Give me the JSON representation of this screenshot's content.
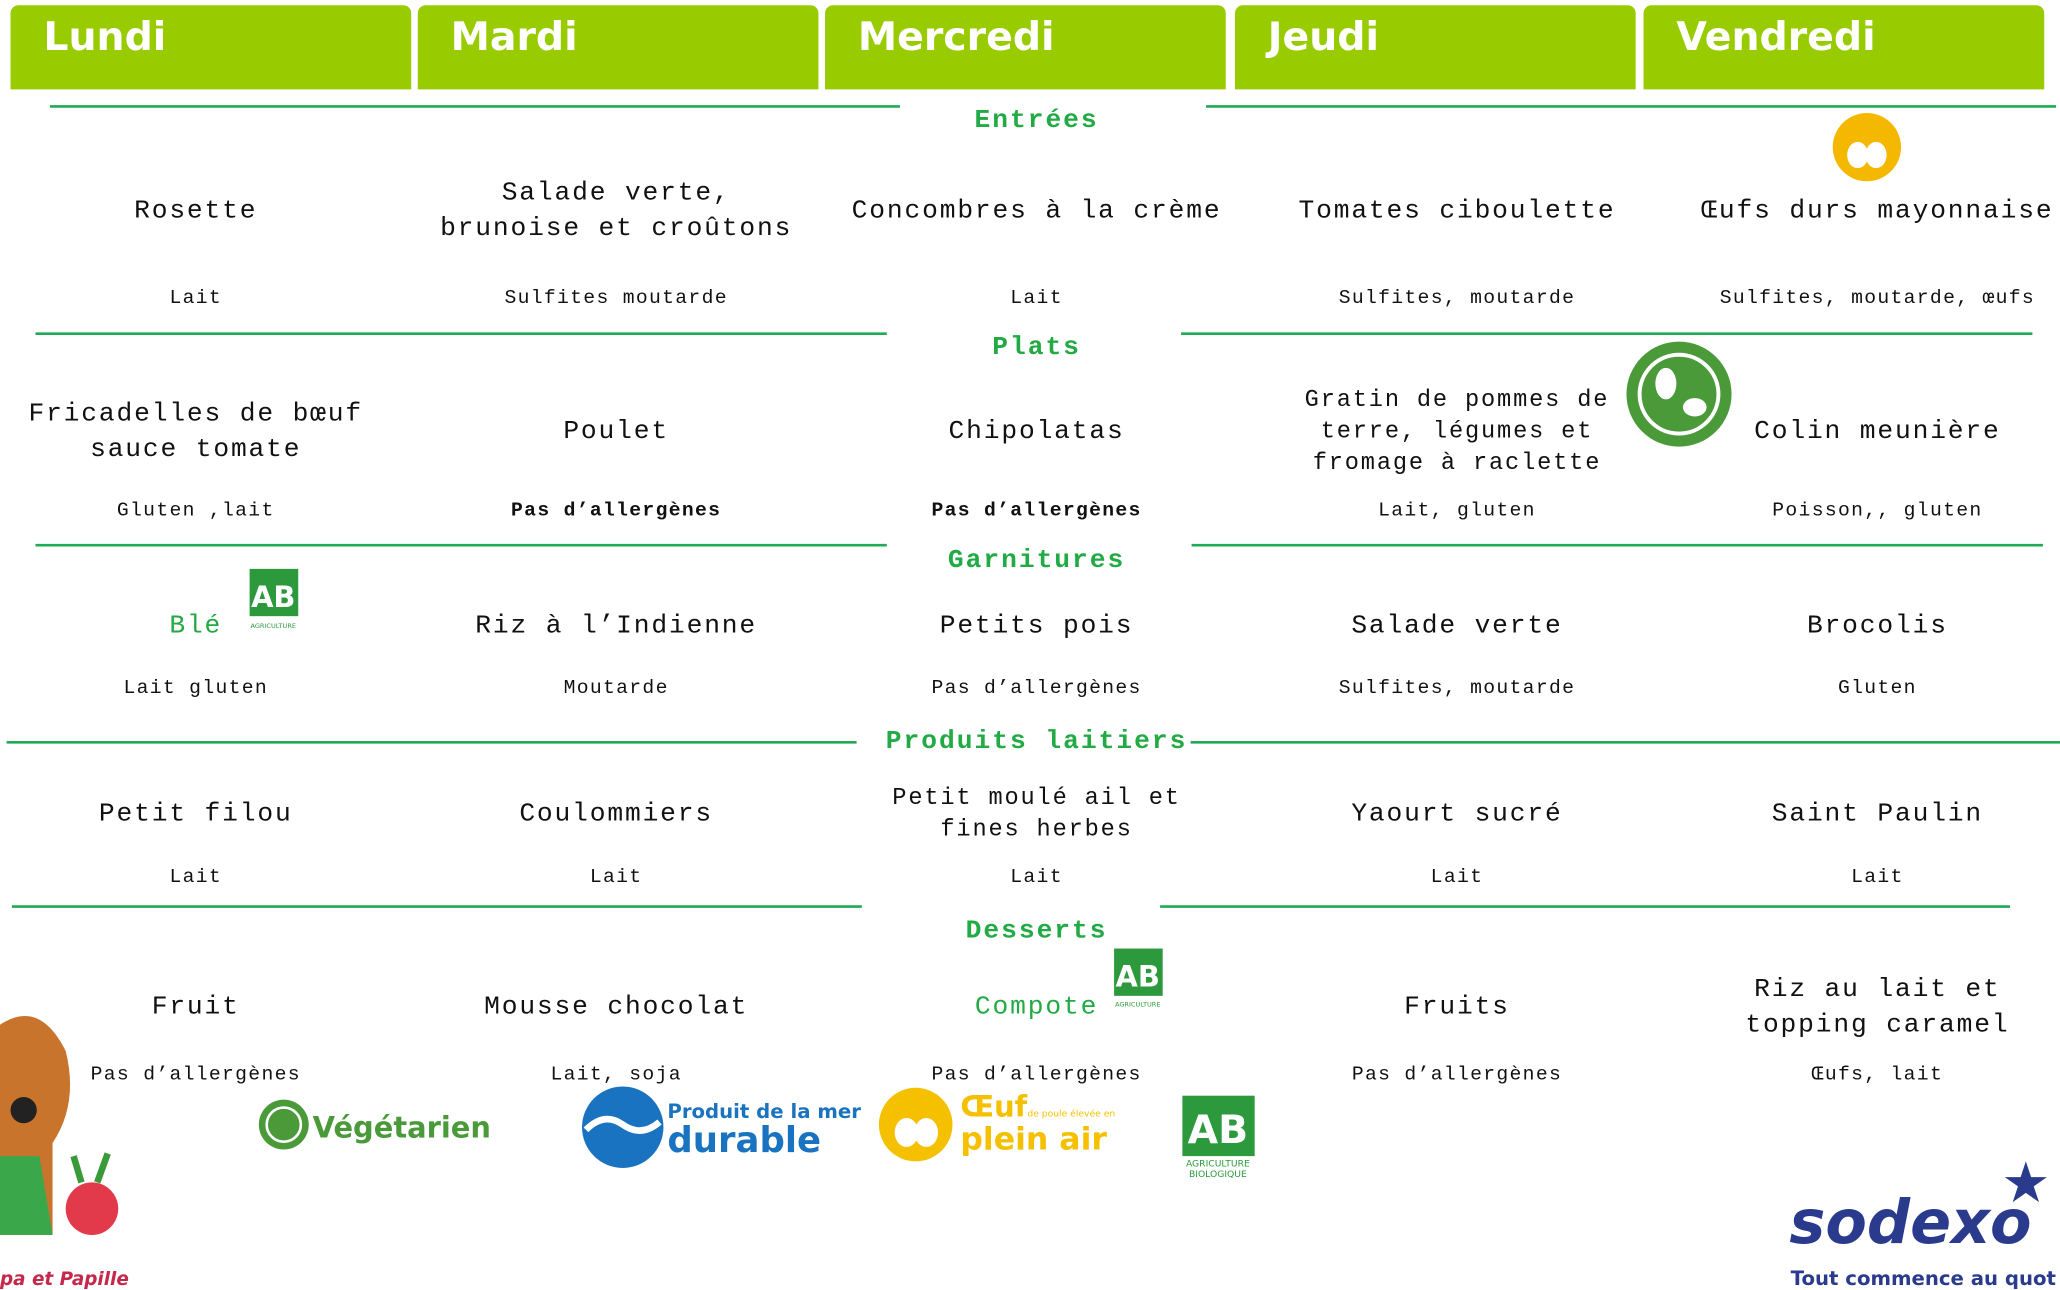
{
  "days": [
    "Lundi",
    "Mardi",
    "Mercredi",
    "Jeudi",
    "Vendredi"
  ],
  "sections": [
    {
      "title": "Entrées",
      "items": [
        {
          "name": "Rosette",
          "allergens": "Lait"
        },
        {
          "name": "Salade verte, brunoise et croûtons",
          "allergens": "Sulfites moutarde"
        },
        {
          "name": "Concombres à la crème",
          "allergens": "Lait"
        },
        {
          "name": "Tomates ciboulette",
          "allergens": "Sulfites, moutarde"
        },
        {
          "name": "Œufs durs mayonnaise",
          "allergens": "Sulfites, moutarde, œufs"
        }
      ]
    },
    {
      "title": "Plats",
      "items": [
        {
          "name": "Fricadelles de bœuf sauce tomate",
          "allergens": "Gluten ,lait"
        },
        {
          "name": "Poulet",
          "allergens": "Pas d’allergènes"
        },
        {
          "name": "Chipolatas",
          "allergens": "Pas d’allergènes"
        },
        {
          "name": "Gratin de pommes de terre, légumes et fromage à raclette",
          "allergens": "Lait, gluten"
        },
        {
          "name": "Colin meunière",
          "allergens": "Poisson,, gluten"
        }
      ]
    },
    {
      "title": "Garnitures",
      "items": [
        {
          "name": "Blé",
          "allergens": "Lait gluten"
        },
        {
          "name": "Riz à l’Indienne",
          "allergens": "Moutarde"
        },
        {
          "name": "Petits pois",
          "allergens": "Pas d’allergènes"
        },
        {
          "name": "Salade verte",
          "allergens": "Sulfites, moutarde"
        },
        {
          "name": "Brocolis",
          "allergens": "Gluten"
        }
      ]
    },
    {
      "title": "Produits laitiers",
      "items": [
        {
          "name": "Petit filou",
          "allergens": "Lait"
        },
        {
          "name": "Coulommiers",
          "allergens": "Lait"
        },
        {
          "name": "Petit moulé ail et fines herbes",
          "allergens": "Lait"
        },
        {
          "name": "Yaourt sucré",
          "allergens": "Lait"
        },
        {
          "name": "Saint Paulin",
          "allergens": "Lait"
        }
      ]
    },
    {
      "title": "Desserts",
      "items": [
        {
          "name": "Fruit",
          "allergens": "Pas d’allergènes"
        },
        {
          "name": "Mousse chocolat",
          "allergens": "Lait, soja"
        },
        {
          "name": "Compote",
          "allergens": "Pas d’allergènes"
        },
        {
          "name": "Fruits",
          "allergens": "Pas d’allergènes"
        },
        {
          "name": "Riz au lait et topping caramel",
          "allergens": "Œufs, lait"
        }
      ]
    }
  ],
  "legend": {
    "vegetarian": "Végétarien",
    "sea": {
      "line1": "Produit de la mer",
      "line2": "durable"
    },
    "egg": {
      "line1": "Œuf",
      "small": "de poule élevée en",
      "line2": "plein air"
    },
    "ab": {
      "mark": "AB",
      "line1": "AGRICULTURE",
      "line2": "BIOLOGIQUE"
    }
  },
  "brand": {
    "mascot": "pa et Papille",
    "logo": "sodexo",
    "tagline": "Tout commence au quot"
  }
}
